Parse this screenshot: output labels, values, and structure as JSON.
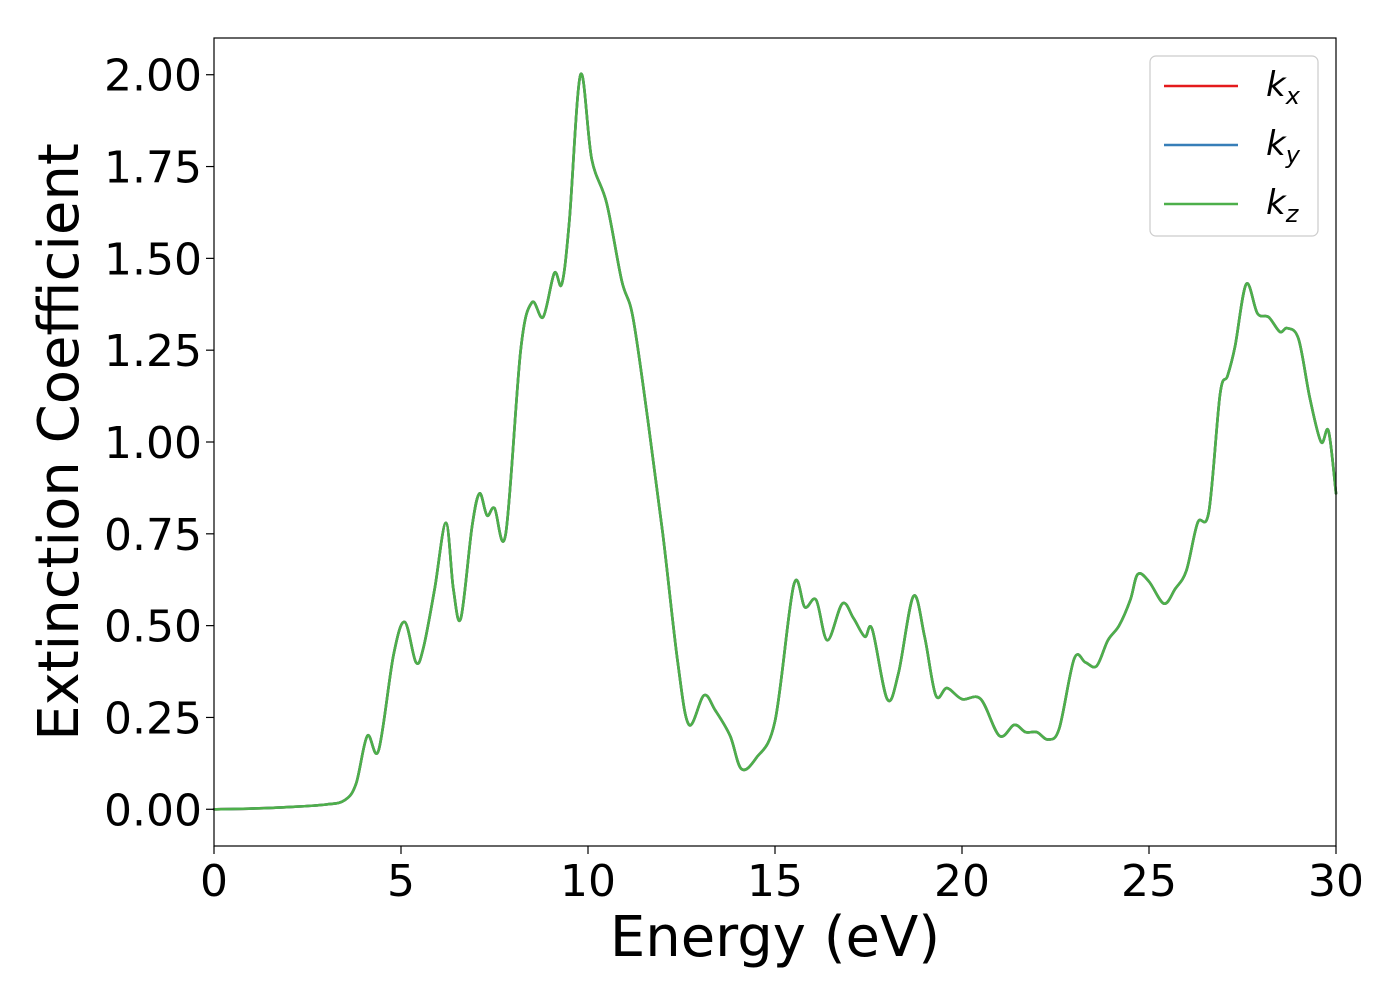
{
  "chart_data": {
    "type": "line",
    "xlabel": "Energy (eV)",
    "ylabel": "Extinction Coefficient",
    "xlim": [
      0,
      30
    ],
    "ylim": [
      -0.1,
      2.1
    ],
    "xticks": [
      0,
      5,
      10,
      15,
      20,
      25,
      30
    ],
    "xtick_labels": [
      "0",
      "5",
      "10",
      "15",
      "20",
      "25",
      "30"
    ],
    "yticks": [
      0,
      0.25,
      0.5,
      0.75,
      1.0,
      1.25,
      1.5,
      1.75,
      2.0
    ],
    "ytick_labels": [
      "0.00",
      "0.25",
      "0.50",
      "0.75",
      "1.00",
      "1.25",
      "1.50",
      "1.75",
      "2.00"
    ],
    "grid": false,
    "legend_position": "top-right",
    "x": [
      0,
      1,
      2,
      3,
      3.5,
      3.8,
      4.1,
      4.4,
      4.8,
      5.1,
      5.4,
      5.6,
      5.9,
      6.2,
      6.4,
      6.6,
      6.9,
      7.1,
      7.3,
      7.5,
      7.8,
      8.2,
      8.5,
      8.8,
      9.1,
      9.3,
      9.5,
      9.8,
      10.1,
      10.5,
      10.9,
      11.2,
      11.6,
      12,
      12.4,
      12.7,
      13.1,
      13.4,
      13.8,
      14.1,
      14.5,
      15,
      15.5,
      15.8,
      16.1,
      16.4,
      16.8,
      17.1,
      17.4,
      17.6,
      18,
      18.3,
      18.7,
      19,
      19.3,
      19.6,
      20,
      20.5,
      21,
      21.4,
      21.7,
      22,
      22.3,
      22.6,
      23,
      23.3,
      23.6,
      23.9,
      24.2,
      24.5,
      24.7,
      25,
      25.4,
      25.7,
      26,
      26.3,
      26.6,
      26.9,
      27.1,
      27.3,
      27.6,
      27.9,
      28.2,
      28.5,
      28.7,
      29,
      29.3,
      29.6,
      29.8,
      30
    ],
    "series": [
      {
        "name": "k_x",
        "label_main": "k",
        "label_sub": "x",
        "color": "#e41a1c",
        "y": [
          0,
          0.002,
          0.006,
          0.013,
          0.025,
          0.07,
          0.2,
          0.16,
          0.42,
          0.51,
          0.4,
          0.44,
          0.6,
          0.78,
          0.6,
          0.52,
          0.77,
          0.86,
          0.8,
          0.82,
          0.75,
          1.25,
          1.38,
          1.34,
          1.46,
          1.43,
          1.6,
          2.0,
          1.77,
          1.65,
          1.44,
          1.34,
          1.06,
          0.75,
          0.4,
          0.23,
          0.31,
          0.27,
          0.2,
          0.11,
          0.14,
          0.24,
          0.61,
          0.55,
          0.57,
          0.46,
          0.56,
          0.52,
          0.47,
          0.49,
          0.3,
          0.37,
          0.58,
          0.47,
          0.31,
          0.33,
          0.3,
          0.3,
          0.2,
          0.23,
          0.21,
          0.21,
          0.19,
          0.22,
          0.41,
          0.4,
          0.39,
          0.46,
          0.5,
          0.57,
          0.64,
          0.62,
          0.56,
          0.6,
          0.65,
          0.78,
          0.81,
          1.13,
          1.18,
          1.26,
          1.43,
          1.35,
          1.34,
          1.3,
          1.31,
          1.28,
          1.12,
          1.0,
          1.03,
          0.86
        ]
      },
      {
        "name": "k_y",
        "label_main": "k",
        "label_sub": "y",
        "color": "#377eb8",
        "y": [
          0,
          0.002,
          0.006,
          0.013,
          0.025,
          0.07,
          0.2,
          0.16,
          0.42,
          0.51,
          0.4,
          0.44,
          0.6,
          0.78,
          0.6,
          0.52,
          0.77,
          0.86,
          0.8,
          0.82,
          0.75,
          1.25,
          1.38,
          1.34,
          1.46,
          1.43,
          1.6,
          2.0,
          1.77,
          1.65,
          1.44,
          1.34,
          1.06,
          0.75,
          0.4,
          0.23,
          0.31,
          0.27,
          0.2,
          0.11,
          0.14,
          0.24,
          0.61,
          0.55,
          0.57,
          0.46,
          0.56,
          0.52,
          0.47,
          0.49,
          0.3,
          0.37,
          0.58,
          0.47,
          0.31,
          0.33,
          0.3,
          0.3,
          0.2,
          0.23,
          0.21,
          0.21,
          0.19,
          0.22,
          0.41,
          0.4,
          0.39,
          0.46,
          0.5,
          0.57,
          0.64,
          0.62,
          0.56,
          0.6,
          0.65,
          0.78,
          0.81,
          1.13,
          1.18,
          1.26,
          1.43,
          1.35,
          1.34,
          1.3,
          1.31,
          1.28,
          1.12,
          1.0,
          1.03,
          0.86
        ]
      },
      {
        "name": "k_z",
        "label_main": "k",
        "label_sub": "z",
        "color": "#4daf4a",
        "y": [
          0,
          0.002,
          0.006,
          0.013,
          0.025,
          0.07,
          0.2,
          0.16,
          0.42,
          0.51,
          0.4,
          0.44,
          0.6,
          0.78,
          0.6,
          0.52,
          0.77,
          0.86,
          0.8,
          0.82,
          0.75,
          1.25,
          1.38,
          1.34,
          1.46,
          1.43,
          1.6,
          2.0,
          1.77,
          1.65,
          1.44,
          1.34,
          1.06,
          0.75,
          0.4,
          0.23,
          0.31,
          0.27,
          0.2,
          0.11,
          0.14,
          0.24,
          0.61,
          0.55,
          0.57,
          0.46,
          0.56,
          0.52,
          0.47,
          0.49,
          0.3,
          0.37,
          0.58,
          0.47,
          0.31,
          0.33,
          0.3,
          0.3,
          0.2,
          0.23,
          0.21,
          0.21,
          0.19,
          0.22,
          0.41,
          0.4,
          0.39,
          0.46,
          0.5,
          0.57,
          0.64,
          0.62,
          0.56,
          0.6,
          0.65,
          0.78,
          0.81,
          1.13,
          1.18,
          1.26,
          1.43,
          1.35,
          1.34,
          1.3,
          1.31,
          1.28,
          1.12,
          1.0,
          1.03,
          0.86
        ]
      }
    ]
  }
}
